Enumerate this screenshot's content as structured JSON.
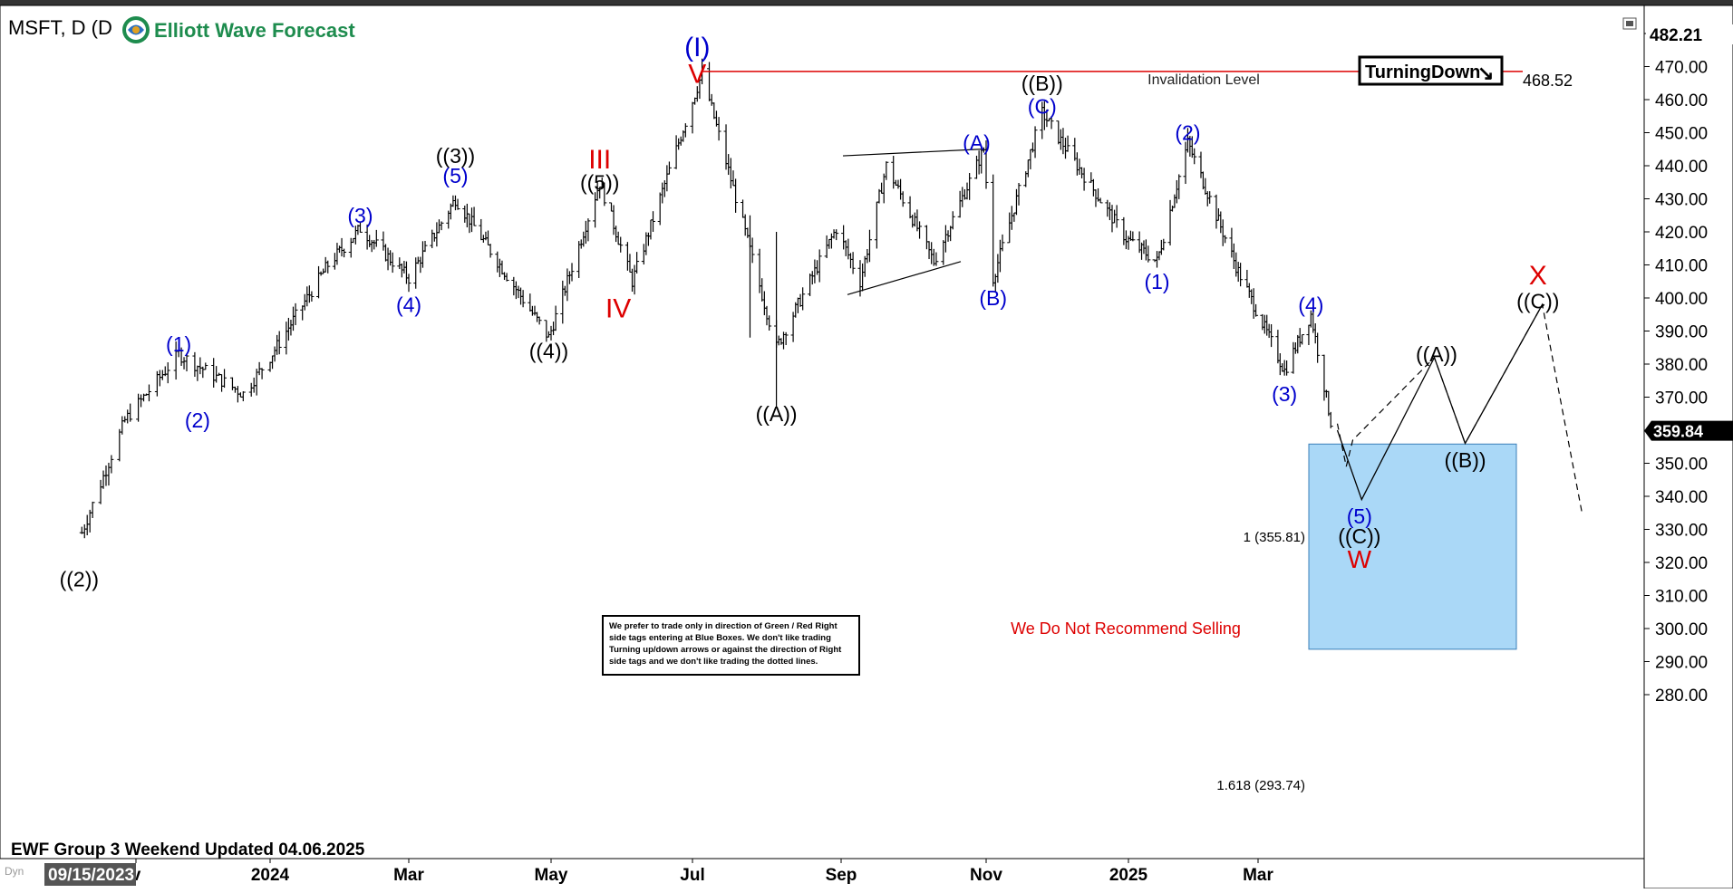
{
  "header": {
    "ticker": "MSFT, D (D",
    "brand": "Elliott Wave Forecast",
    "footer": "EWF Group 3 Weekend Updated 04.06.2025",
    "date_box": "09/15/2023",
    "dyn": "Dyn",
    "price_tag_top": "482.21",
    "price_tag_current": "359.84",
    "turning_badge": "TurningDown",
    "turning_arrow": "↘"
  },
  "notes": {
    "invalidation": "Invalidation Level",
    "invalidation_value": "468.52",
    "fib1": "1 (355.81)",
    "fib2": "1.618 (293.74)",
    "no_sell": "We Do Not Recommend Selling",
    "disclaimer": [
      "We prefer to trade only in direction of Green / Red Right",
      "side tags entering at Blue Boxes. We don't like trading",
      "Turning up/down arrows or against the direction of Right",
      "side tags and we don't like trading the dotted lines."
    ]
  },
  "colors": {
    "blue": "#0000cc",
    "red": "#dd0000",
    "box": "#aad8f7",
    "inv_line": "#dd0000"
  },
  "chart_data": {
    "type": "ohlc",
    "title": "MSFT, D",
    "y_ticks": [
      280,
      290,
      300,
      310,
      320,
      330,
      340,
      350,
      360,
      370,
      380,
      390,
      400,
      410,
      420,
      430,
      440,
      450,
      460,
      470,
      480
    ],
    "ylim": [
      275,
      487
    ],
    "x_ticks": [
      "v",
      "2024",
      "Mar",
      "May",
      "Jul",
      "Sep",
      "Nov",
      "2025",
      "Mar"
    ],
    "invalidation_level": 468.52,
    "current_price": 359.84,
    "blue_box": {
      "from": 355.81,
      "to": 293.74
    },
    "pivots": [
      {
        "date": "2023-10-23",
        "price": 329
      },
      {
        "date": "2023-11-08",
        "price": 363
      },
      {
        "date": "2023-11-28",
        "price": 383
      },
      {
        "date": "2023-12-22",
        "price": 371
      },
      {
        "date": "2024-01-26",
        "price": 410
      },
      {
        "date": "2024-02-09",
        "price": 421
      },
      {
        "date": "2024-03-01",
        "price": 406
      },
      {
        "date": "2024-03-21",
        "price": 430
      },
      {
        "date": "2024-04-30",
        "price": 388
      },
      {
        "date": "2024-05-22",
        "price": 435
      },
      {
        "date": "2024-06-05",
        "price": 405
      },
      {
        "date": "2024-07-05",
        "price": 468
      },
      {
        "date": "2024-08-05",
        "price": 385
      },
      {
        "date": "2024-08-30",
        "price": 421
      },
      {
        "date": "2024-09-09",
        "price": 405
      },
      {
        "date": "2024-09-20",
        "price": 440
      },
      {
        "date": "2024-10-10",
        "price": 411
      },
      {
        "date": "2024-10-31",
        "price": 445
      },
      {
        "date": "2024-11-04",
        "price": 406
      },
      {
        "date": "2024-11-25",
        "price": 456
      },
      {
        "date": "2024-12-31",
        "price": 418
      },
      {
        "date": "2025-01-14",
        "price": 411
      },
      {
        "date": "2025-01-28",
        "price": 447
      },
      {
        "date": "2025-02-20",
        "price": 408
      },
      {
        "date": "2025-03-13",
        "price": 378
      },
      {
        "date": "2025-03-25",
        "price": 395
      },
      {
        "date": "2025-04-04",
        "price": 359
      }
    ],
    "projection": {
      "solid": [
        [
          "2025-04-06",
          360
        ],
        [
          "2025-04-17",
          339
        ],
        [
          "2025-05-20",
          382
        ],
        [
          "2025-06-03",
          356
        ],
        [
          "2025-07-08",
          398
        ]
      ],
      "dashed": [
        [
          "2025-04-06",
          362
        ],
        [
          "2025-04-10",
          349
        ],
        [
          "2025-04-13",
          357
        ],
        [
          "2025-05-20",
          382
        ],
        [
          "2025-06-03",
          356
        ],
        [
          "2025-07-08",
          398
        ],
        [
          "2025-07-26",
          335
        ]
      ]
    },
    "labels": [
      {
        "text": "(I)",
        "date": "2024-07-03",
        "price": 476,
        "color": "blue",
        "size": 30
      },
      {
        "text": "V",
        "date": "2024-07-03",
        "price": 468,
        "color": "red",
        "size": 30
      },
      {
        "text": "III",
        "date": "2024-05-22",
        "price": 442,
        "color": "red",
        "size": 30
      },
      {
        "text": "IV",
        "date": "2024-05-30",
        "price": 397,
        "color": "red",
        "size": 30
      },
      {
        "text": "((3))",
        "date": "2024-03-21",
        "price": 443,
        "color": "black",
        "size": 23
      },
      {
        "text": "(5)",
        "date": "2024-03-21",
        "price": 437,
        "color": "blue",
        "size": 23
      },
      {
        "text": "(3)",
        "date": "2024-02-09",
        "price": 425,
        "color": "blue",
        "size": 23
      },
      {
        "text": "(4)",
        "date": "2024-03-01",
        "price": 398,
        "color": "blue",
        "size": 23
      },
      {
        "text": "((5))",
        "date": "2024-05-22",
        "price": 435,
        "color": "black",
        "size": 23
      },
      {
        "text": "((4))",
        "date": "2024-04-30",
        "price": 384,
        "color": "black",
        "size": 23
      },
      {
        "text": "(1)",
        "date": "2023-11-28",
        "price": 386,
        "color": "blue",
        "size": 23
      },
      {
        "text": "(2)",
        "date": "2023-12-05",
        "price": 363,
        "color": "blue",
        "size": 23
      },
      {
        "text": "((2))",
        "date": "2023-10-22",
        "price": 315,
        "color": "black",
        "size": 23
      },
      {
        "text": "((A))",
        "date": "2024-08-05",
        "price": 365,
        "color": "black",
        "size": 23
      },
      {
        "text": "(A)",
        "date": "2024-10-28",
        "price": 447,
        "color": "blue",
        "size": 23
      },
      {
        "text": "(B)",
        "date": "2024-11-04",
        "price": 400,
        "color": "blue",
        "size": 23
      },
      {
        "text": "((B))",
        "date": "2024-11-25",
        "price": 465,
        "color": "black",
        "size": 23
      },
      {
        "text": "(C)",
        "date": "2024-11-25",
        "price": 458,
        "color": "blue",
        "size": 23
      },
      {
        "text": "(2)",
        "date": "2025-01-28",
        "price": 450,
        "color": "blue",
        "size": 23
      },
      {
        "text": "(1)",
        "date": "2025-01-14",
        "price": 405,
        "color": "blue",
        "size": 23
      },
      {
        "text": "(3)",
        "date": "2025-03-13",
        "price": 371,
        "color": "blue",
        "size": 23
      },
      {
        "text": "(4)",
        "date": "2025-03-25",
        "price": 398,
        "color": "blue",
        "size": 23
      },
      {
        "text": "(5)",
        "date": "2025-04-16",
        "price": 334,
        "color": "blue",
        "size": 23
      },
      {
        "text": "((C))",
        "date": "2025-04-16",
        "price": 328,
        "color": "black",
        "size": 23
      },
      {
        "text": "W",
        "date": "2025-04-16",
        "price": 321,
        "color": "red",
        "size": 28
      },
      {
        "text": "((A))",
        "date": "2025-05-21",
        "price": 383,
        "color": "black",
        "size": 23
      },
      {
        "text": "((B))",
        "date": "2025-06-03",
        "price": 351,
        "color": "black",
        "size": 23
      },
      {
        "text": "((C))",
        "date": "2025-07-06",
        "price": 399,
        "color": "black",
        "size": 23
      },
      {
        "text": "X",
        "date": "2025-07-06",
        "price": 407,
        "color": "red",
        "size": 30
      }
    ]
  }
}
